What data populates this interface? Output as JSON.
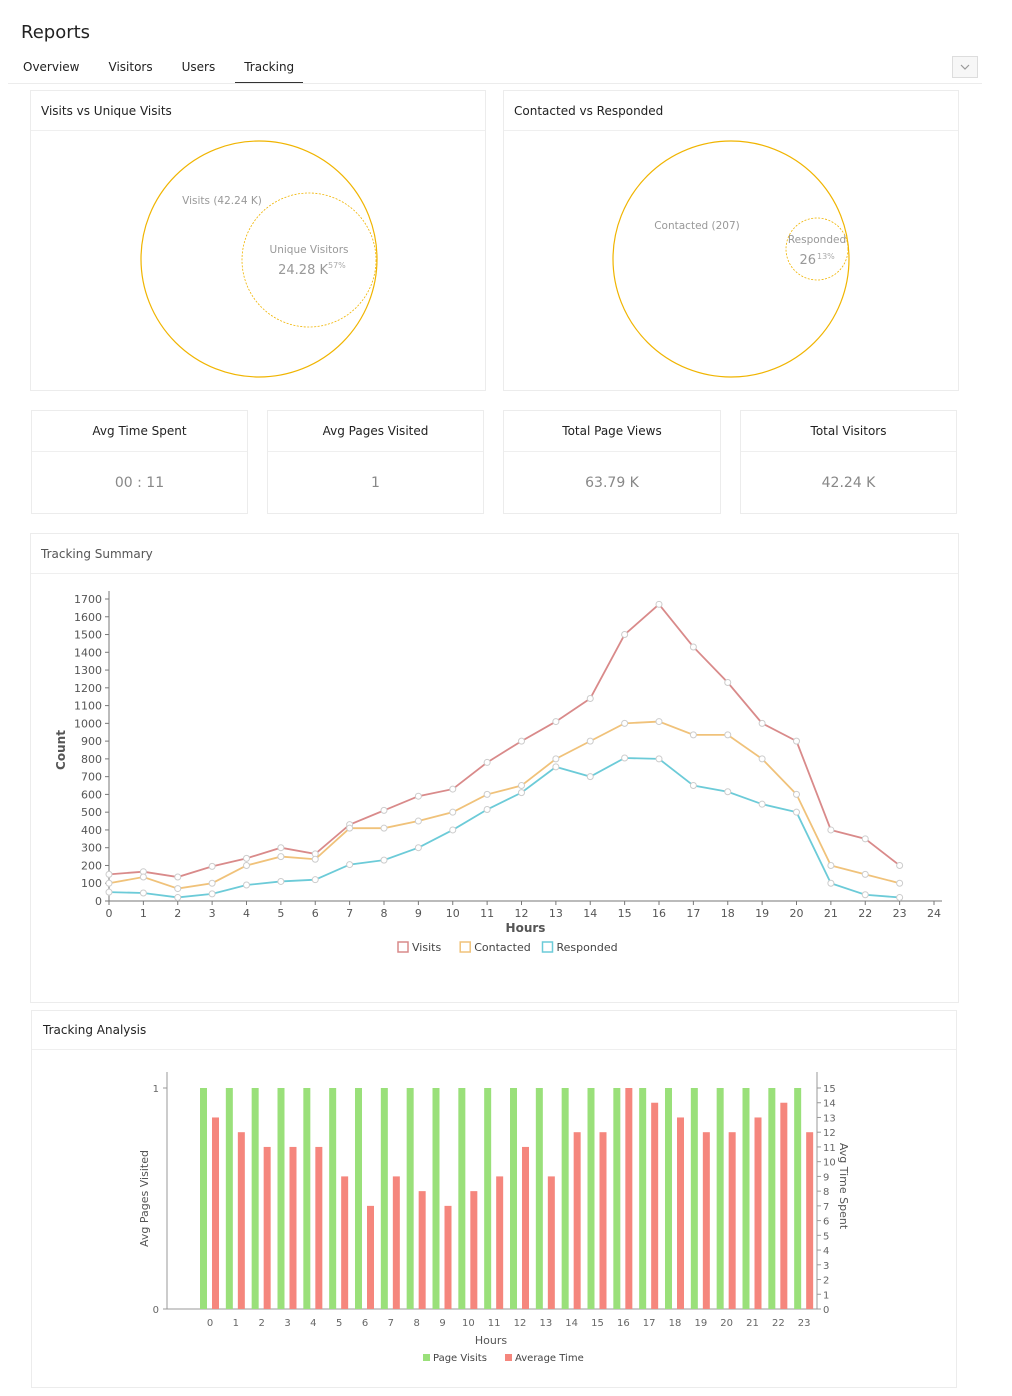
{
  "header": {
    "title": "Reports"
  },
  "tabs": [
    {
      "label": "Overview"
    },
    {
      "label": "Visitors"
    },
    {
      "label": "Users"
    },
    {
      "label": "Tracking",
      "active": true
    }
  ],
  "panels": {
    "visits_vs_unique": {
      "title": "Visits vs Unique Visits",
      "outer_label": "Visits (42.24 K)",
      "inner_label": "Unique Visitors",
      "inner_value": "24.28 K",
      "inner_pct": "57%"
    },
    "contacted_vs_responded": {
      "title": "Contacted vs Responded",
      "outer_label": "Contacted (207)",
      "inner_label": "Responded",
      "inner_value": "26",
      "inner_pct": "13%"
    }
  },
  "stats": [
    {
      "label": "Avg Time Spent",
      "value": "00 : 11"
    },
    {
      "label": "Avg Pages Visited",
      "value": "1"
    },
    {
      "label": "Total Page Views",
      "value": "63.79 K"
    },
    {
      "label": "Total Visitors",
      "value": "42.24 K"
    }
  ],
  "colors": {
    "venn": "#f0b400",
    "visits": "#d98a8a",
    "contacted": "#f0c27a",
    "responded": "#6ccbd8",
    "page_visits": "#9ae07a",
    "average_time": "#f5867d"
  },
  "chart_data": [
    {
      "type": "line",
      "title": "Tracking Summary",
      "xlabel": "Hours",
      "ylabel": "Count",
      "xlim": [
        0,
        24
      ],
      "ylim": [
        0,
        1700
      ],
      "x": [
        0,
        1,
        2,
        3,
        4,
        5,
        6,
        7,
        8,
        9,
        10,
        11,
        12,
        13,
        14,
        15,
        16,
        17,
        18,
        19,
        20,
        21,
        22,
        23
      ],
      "series": [
        {
          "name": "Visits",
          "values": [
            150,
            165,
            135,
            195,
            240,
            300,
            265,
            430,
            510,
            590,
            630,
            780,
            900,
            1010,
            1140,
            1500,
            1670,
            1430,
            1230,
            1000,
            900,
            400,
            350,
            200
          ]
        },
        {
          "name": "Contacted",
          "values": [
            100,
            135,
            70,
            100,
            200,
            250,
            235,
            410,
            410,
            450,
            500,
            600,
            650,
            800,
            900,
            1000,
            1010,
            935,
            935,
            800,
            600,
            200,
            150,
            100
          ]
        },
        {
          "name": "Responded",
          "values": [
            50,
            45,
            20,
            40,
            90,
            110,
            120,
            205,
            230,
            300,
            400,
            515,
            610,
            755,
            700,
            805,
            800,
            650,
            615,
            545,
            500,
            100,
            35,
            20
          ]
        }
      ],
      "legend": "bottom"
    },
    {
      "type": "bar",
      "title": "Tracking Analysis",
      "xlabel": "Hours",
      "ylabel": "Avg Pages Visited",
      "y2label": "Avg Time Spent",
      "ylim": [
        0,
        1
      ],
      "y2lim": [
        0,
        15
      ],
      "categories": [
        "0",
        "1",
        "2",
        "3",
        "4",
        "5",
        "6",
        "7",
        "8",
        "9",
        "10",
        "11",
        "12",
        "13",
        "14",
        "15",
        "16",
        "17",
        "18",
        "19",
        "20",
        "21",
        "22",
        "23"
      ],
      "series": [
        {
          "name": "Page Visits",
          "axis": "left",
          "values": [
            1,
            1,
            1,
            1,
            1,
            1,
            1,
            1,
            1,
            1,
            1,
            1,
            1,
            1,
            1,
            1,
            1,
            1,
            1,
            1,
            1,
            1,
            1,
            1
          ]
        },
        {
          "name": "Average Time",
          "axis": "right",
          "values": [
            13,
            12,
            11,
            11,
            11,
            9,
            7,
            9,
            8,
            7,
            8,
            9,
            11,
            9,
            12,
            12,
            15,
            14,
            13,
            12,
            12,
            13,
            14,
            12
          ]
        }
      ],
      "legend": "bottom"
    }
  ]
}
